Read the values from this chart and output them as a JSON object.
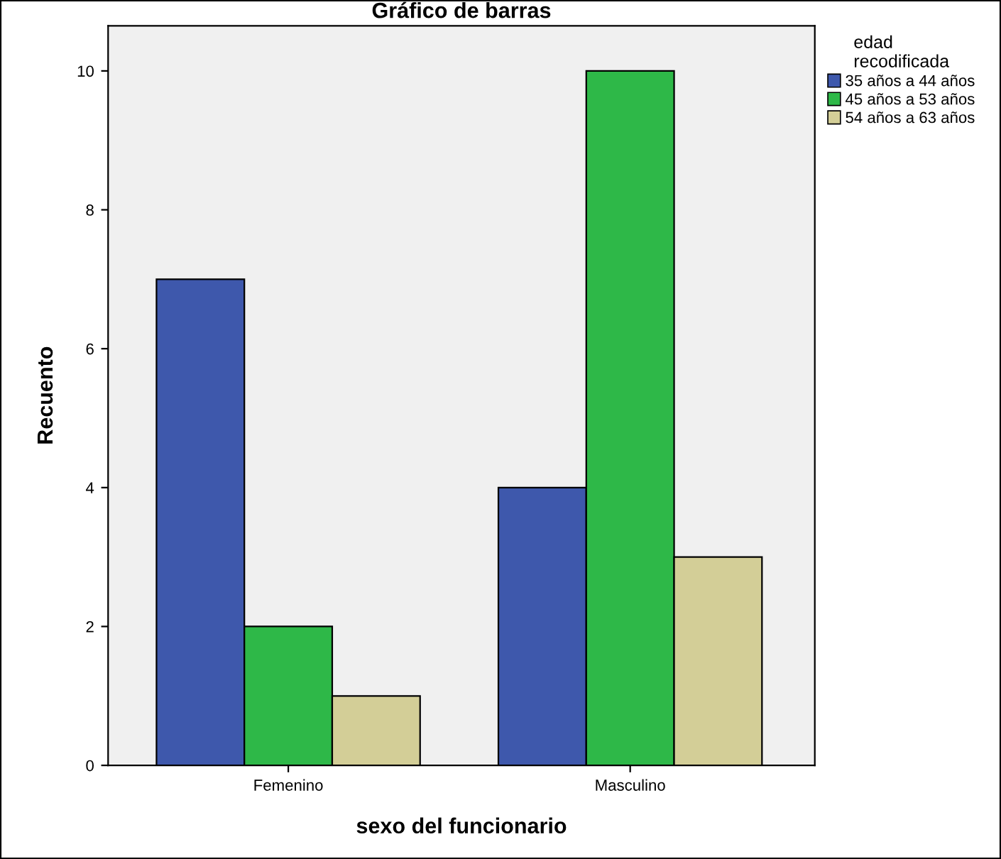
{
  "chart_data": {
    "type": "bar",
    "title": "Gráfico de barras",
    "xlabel": "sexo del funcionario",
    "ylabel": "Recuento",
    "legend_title": "edad\nrecodificada",
    "categories": [
      "Femenino",
      "Masculino"
    ],
    "series": [
      {
        "name": "35 años a 44 años",
        "color": "#3e58ac",
        "values": [
          7,
          4
        ]
      },
      {
        "name": "45 años a 53 años",
        "color": "#2eb848",
        "values": [
          2,
          10
        ]
      },
      {
        "name": "54 años a 63 años",
        "color": "#d3ce97",
        "values": [
          1,
          3
        ]
      }
    ],
    "ylim": [
      0,
      10.65
    ],
    "yticks": [
      0,
      2,
      4,
      6,
      8,
      10
    ],
    "grid": false,
    "legend": "right"
  }
}
